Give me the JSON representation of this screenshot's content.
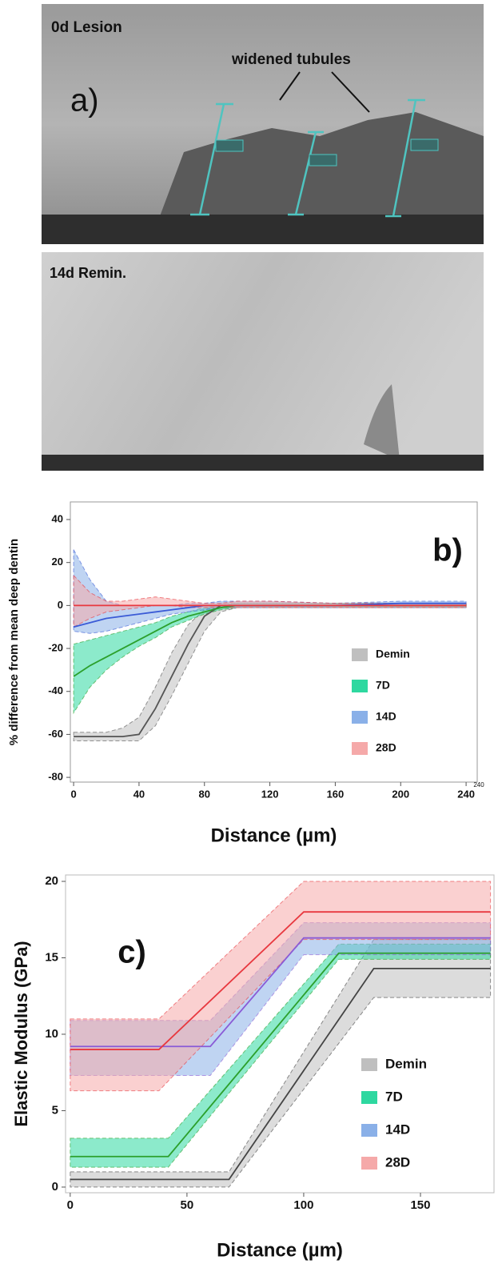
{
  "panel_a": {
    "label": "a)",
    "top_title": "0d Lesion",
    "annotation": "widened tubules",
    "bottom_title": "14d Remin."
  },
  "chart_data": [
    {
      "type": "band-line",
      "panel_label": "b)",
      "y_label": "% difference from mean deep dentin",
      "x_label": "Distance (µm)",
      "x_end_note": "240",
      "xlim": [
        -2,
        246.8
      ],
      "ylim": [
        -82.2,
        48.2
      ],
      "xticks": [
        0,
        40,
        80,
        120,
        160,
        200,
        240
      ],
      "yticks": [
        -80,
        -60,
        -40,
        -20,
        0,
        20,
        40
      ],
      "series": [
        {
          "name": "Demin",
          "color": "#555555",
          "band_color": "#bfbfbf",
          "x": [
            0,
            10,
            20,
            30,
            40,
            50,
            60,
            70,
            80,
            90,
            100,
            120,
            160,
            200,
            240
          ],
          "values": [
            -61,
            -61,
            -61,
            -61,
            -60,
            -48,
            -33,
            -18,
            -5,
            0,
            0,
            0,
            0,
            0,
            0
          ],
          "lower": [
            -63,
            -63,
            -63,
            -63,
            -63,
            -56,
            -42,
            -27,
            -12,
            -3,
            -1,
            -1,
            -1,
            -1,
            -1
          ],
          "upper": [
            -59,
            -59,
            -59,
            -57,
            -52,
            -38,
            -22,
            -9,
            -2,
            1,
            1,
            1,
            1,
            1,
            1
          ]
        },
        {
          "name": "7D",
          "color": "#2ca02c",
          "band_color": "#2ed8a0",
          "x": [
            0,
            10,
            20,
            30,
            40,
            50,
            60,
            70,
            80,
            90,
            100,
            120,
            160,
            200,
            240
          ],
          "values": [
            -33,
            -28,
            -24,
            -20,
            -16,
            -12,
            -8,
            -5,
            -3,
            -1,
            0,
            0,
            0,
            0,
            0
          ],
          "lower": [
            -50,
            -38,
            -30,
            -24,
            -19,
            -15,
            -10,
            -7,
            -4,
            -2,
            -1,
            -1,
            -1,
            -1,
            -1
          ],
          "upper": [
            -18,
            -16,
            -14,
            -12,
            -10,
            -8,
            -5,
            -3,
            -1,
            0,
            1,
            1,
            1,
            1,
            1
          ]
        },
        {
          "name": "14D",
          "color": "#3b5bd6",
          "band_color": "#8ab0e8",
          "x": [
            0,
            10,
            20,
            30,
            40,
            50,
            60,
            70,
            80,
            90,
            100,
            120,
            160,
            200,
            240
          ],
          "values": [
            -10,
            -8,
            -6,
            -5,
            -4,
            -3,
            -2,
            -1,
            0,
            0,
            0,
            0,
            0,
            1,
            1
          ],
          "lower": [
            -12,
            -13,
            -12,
            -10,
            -8,
            -6,
            -4,
            -3,
            -2,
            -1,
            -1,
            -1,
            -1,
            -1,
            -1
          ],
          "upper": [
            26,
            12,
            2,
            0,
            0,
            0,
            0,
            1,
            1,
            2,
            2,
            2,
            1,
            2,
            2
          ]
        },
        {
          "name": "28D",
          "color": "#e8383f",
          "band_color": "#f5a9a9",
          "x": [
            0,
            10,
            20,
            30,
            40,
            50,
            60,
            70,
            80,
            90,
            100,
            120,
            160,
            200,
            240
          ],
          "values": [
            0,
            0,
            0,
            0,
            0,
            0,
            0,
            0,
            0,
            0,
            0,
            0,
            0,
            0,
            0
          ],
          "lower": [
            -10,
            -6,
            -3,
            -2,
            -1,
            0,
            0,
            -1,
            -1,
            -1,
            -1,
            -1,
            -1,
            -1,
            -1
          ],
          "upper": [
            14,
            6,
            2,
            2,
            3,
            4,
            3,
            2,
            1,
            1,
            2,
            2,
            1,
            1,
            1
          ]
        }
      ]
    },
    {
      "type": "band-line",
      "panel_label": "c)",
      "y_label": "Elastic Modulus (GPa)",
      "x_label": "Distance (µm)",
      "xlim": [
        -2,
        181.5
      ],
      "ylim": [
        -0.37,
        20.42
      ],
      "xticks": [
        0,
        50,
        100,
        150
      ],
      "yticks": [
        0,
        5,
        10,
        15,
        20
      ],
      "series": [
        {
          "name": "Demin",
          "color": "#444444",
          "band_color": "#bfbfbf",
          "x": [
            0,
            68,
            130,
            180
          ],
          "values": [
            0.5,
            0.5,
            14.3,
            14.3
          ],
          "lower": [
            0,
            0,
            12.4,
            12.4
          ],
          "upper": [
            1,
            1,
            16.2,
            16.2
          ]
        },
        {
          "name": "7D",
          "color": "#2ca02c",
          "band_color": "#2ed8a0",
          "x": [
            0,
            42,
            115,
            180
          ],
          "values": [
            2,
            2,
            15.3,
            15.3
          ],
          "lower": [
            1.3,
            1.3,
            14.9,
            14.9
          ],
          "upper": [
            3.2,
            3.2,
            15.9,
            15.9
          ]
        },
        {
          "name": "14D",
          "color": "#8a5bd6",
          "band_color": "#8ab0e8",
          "x": [
            0,
            60,
            100,
            180
          ],
          "values": [
            9.2,
            9.2,
            16.3,
            16.3
          ],
          "lower": [
            7.3,
            7.3,
            15.2,
            15.2
          ],
          "upper": [
            10.9,
            10.9,
            17.3,
            17.3
          ]
        },
        {
          "name": "28D",
          "color": "#e8383f",
          "band_color": "#f5a9a9",
          "x": [
            0,
            38,
            100,
            180
          ],
          "values": [
            9,
            9,
            18,
            18
          ],
          "lower": [
            6.3,
            6.3,
            16.2,
            16.2
          ],
          "upper": [
            11,
            11,
            20,
            20
          ]
        }
      ]
    }
  ]
}
